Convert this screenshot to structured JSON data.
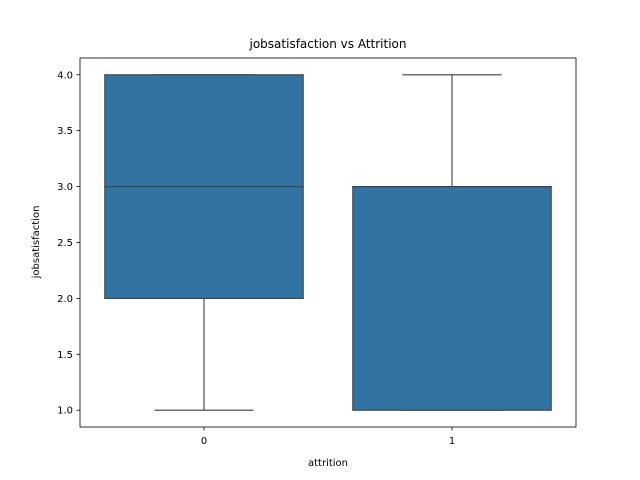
{
  "chart_data": {
    "type": "box",
    "title": "jobsatisfaction vs Attrition",
    "xlabel": "attrition",
    "ylabel": "jobsatisfaction",
    "categories": [
      "0",
      "1"
    ],
    "boxes": [
      {
        "category": "0",
        "whisker_low": 1.0,
        "q1": 2.0,
        "median": 3.0,
        "q3": 4.0,
        "whisker_high": 4.0
      },
      {
        "category": "1",
        "whisker_low": 1.0,
        "q1": 1.0,
        "median": 3.0,
        "q3": 3.0,
        "whisker_high": 4.0
      }
    ],
    "y_ticks": [
      "1.0",
      "1.5",
      "2.0",
      "2.5",
      "3.0",
      "3.5",
      "4.0"
    ],
    "ylim": [
      0.85,
      4.15
    ],
    "grid": false,
    "legend": "none",
    "box_color": "#3274a1",
    "line_color": "#3f3f3f"
  }
}
